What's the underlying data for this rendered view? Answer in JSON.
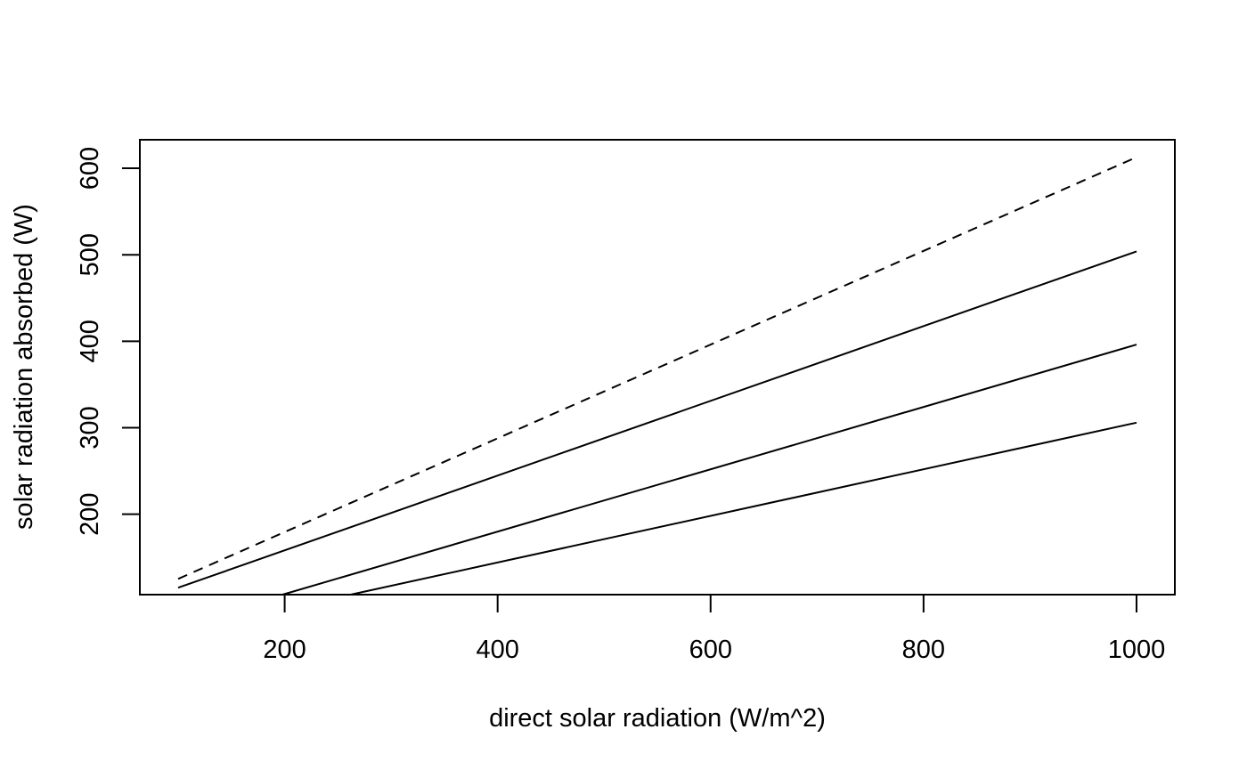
{
  "chart_data": {
    "type": "line",
    "title": "",
    "xlabel": "direct solar radiation (W/m^2)",
    "ylabel": "solar radiation absorbed (W)",
    "xlim": [
      64.0,
      1036.0
    ],
    "ylim": [
      107.0,
      633.0
    ],
    "xticks": [
      200,
      400,
      600,
      800,
      1000
    ],
    "yticks": [
      200,
      300,
      400,
      500,
      600
    ],
    "grid": false,
    "legend": "none",
    "series": [
      {
        "style": "dashed",
        "color": "#000000",
        "x": [
          100,
          1000
        ],
        "y": [
          125.2,
          612.8
        ]
      },
      {
        "style": "solid",
        "color": "#000000",
        "x": [
          100,
          1000
        ],
        "y": [
          115.0,
          503.9
        ]
      },
      {
        "style": "solid",
        "color": "#000000",
        "x": [
          198,
          1000
        ],
        "y": [
          107.0,
          396.1
        ]
      },
      {
        "style": "solid",
        "color": "#000000",
        "x": [
          262,
          1000
        ],
        "y": [
          107.0,
          305.9
        ]
      }
    ]
  }
}
